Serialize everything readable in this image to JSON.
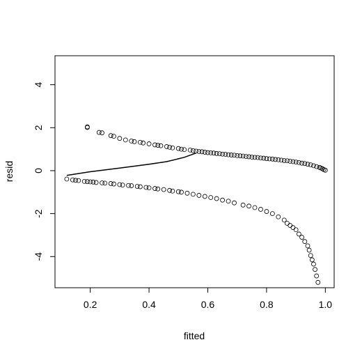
{
  "chart_data": {
    "type": "scatter",
    "title": "",
    "xlabel": "fitted",
    "ylabel": "resid",
    "xlim": [
      0.08,
      1.03
    ],
    "ylim": [
      -5.45,
      5.35
    ],
    "xticks": [
      0.2,
      0.4,
      0.6,
      0.8,
      1.0
    ],
    "xtick_labels": [
      "0.2",
      "0.4",
      "0.6",
      "0.8",
      "1.0"
    ],
    "yticks": [
      -4,
      -2,
      0,
      2,
      4
    ],
    "ytick_labels": [
      "-4",
      "-2",
      "0",
      "2",
      "4"
    ],
    "grid": false,
    "point_style": "open-circle",
    "series": [
      {
        "values": [
          [
            0.19,
            2.04
          ],
          [
            0.19,
            2.01
          ],
          [
            0.23,
            1.78
          ],
          [
            0.24,
            1.76
          ],
          [
            0.27,
            1.63
          ],
          [
            0.28,
            1.6
          ],
          [
            0.3,
            1.5
          ],
          [
            0.32,
            1.43
          ],
          [
            0.34,
            1.38
          ],
          [
            0.35,
            1.35
          ],
          [
            0.37,
            1.32
          ],
          [
            0.38,
            1.29
          ],
          [
            0.4,
            1.25
          ],
          [
            0.42,
            1.2
          ],
          [
            0.43,
            1.18
          ],
          [
            0.44,
            1.16
          ],
          [
            0.46,
            1.12
          ],
          [
            0.47,
            1.09
          ],
          [
            0.48,
            1.06
          ],
          [
            0.5,
            1.03
          ],
          [
            0.51,
            1.0
          ],
          [
            0.52,
            0.98
          ],
          [
            0.54,
            0.96
          ],
          [
            0.55,
            0.93
          ],
          [
            0.56,
            0.91
          ],
          [
            0.57,
            0.89
          ],
          [
            0.58,
            0.88
          ],
          [
            0.59,
            0.86
          ],
          [
            0.6,
            0.84
          ],
          [
            0.61,
            0.83
          ],
          [
            0.62,
            0.82
          ],
          [
            0.63,
            0.8
          ],
          [
            0.64,
            0.79
          ],
          [
            0.65,
            0.77
          ],
          [
            0.66,
            0.76
          ],
          [
            0.67,
            0.74
          ],
          [
            0.68,
            0.73
          ],
          [
            0.69,
            0.72
          ],
          [
            0.7,
            0.7
          ],
          [
            0.71,
            0.69
          ],
          [
            0.72,
            0.68
          ],
          [
            0.73,
            0.66
          ],
          [
            0.74,
            0.65
          ],
          [
            0.75,
            0.63
          ],
          [
            0.76,
            0.62
          ],
          [
            0.77,
            0.61
          ],
          [
            0.78,
            0.59
          ],
          [
            0.79,
            0.58
          ],
          [
            0.8,
            0.56
          ],
          [
            0.81,
            0.55
          ],
          [
            0.82,
            0.54
          ],
          [
            0.83,
            0.52
          ],
          [
            0.84,
            0.51
          ],
          [
            0.85,
            0.49
          ],
          [
            0.86,
            0.47
          ],
          [
            0.87,
            0.46
          ],
          [
            0.88,
            0.44
          ],
          [
            0.89,
            0.42
          ],
          [
            0.9,
            0.4
          ],
          [
            0.91,
            0.38
          ],
          [
            0.92,
            0.35
          ],
          [
            0.93,
            0.33
          ],
          [
            0.94,
            0.3
          ],
          [
            0.95,
            0.27
          ],
          [
            0.96,
            0.23
          ],
          [
            0.97,
            0.19
          ],
          [
            0.98,
            0.15
          ],
          [
            0.985,
            0.12
          ],
          [
            0.99,
            0.09
          ],
          [
            0.995,
            0.05
          ],
          [
            1.0,
            0.02
          ],
          [
            0.12,
            -0.39
          ],
          [
            0.14,
            -0.43
          ],
          [
            0.15,
            -0.45
          ],
          [
            0.16,
            -0.46
          ],
          [
            0.18,
            -0.5
          ],
          [
            0.19,
            -0.51
          ],
          [
            0.2,
            -0.52
          ],
          [
            0.21,
            -0.53
          ],
          [
            0.22,
            -0.55
          ],
          [
            0.24,
            -0.57
          ],
          [
            0.25,
            -0.58
          ],
          [
            0.27,
            -0.6
          ],
          [
            0.28,
            -0.62
          ],
          [
            0.3,
            -0.65
          ],
          [
            0.31,
            -0.67
          ],
          [
            0.33,
            -0.69
          ],
          [
            0.34,
            -0.7
          ],
          [
            0.36,
            -0.73
          ],
          [
            0.37,
            -0.75
          ],
          [
            0.39,
            -0.78
          ],
          [
            0.4,
            -0.8
          ],
          [
            0.42,
            -0.83
          ],
          [
            0.43,
            -0.85
          ],
          [
            0.45,
            -0.88
          ],
          [
            0.47,
            -0.92
          ],
          [
            0.48,
            -0.95
          ],
          [
            0.5,
            -0.98
          ],
          [
            0.51,
            -1.0
          ],
          [
            0.53,
            -1.05
          ],
          [
            0.55,
            -1.1
          ],
          [
            0.57,
            -1.15
          ],
          [
            0.59,
            -1.2
          ],
          [
            0.61,
            -1.25
          ],
          [
            0.63,
            -1.3
          ],
          [
            0.65,
            -1.37
          ],
          [
            0.67,
            -1.42
          ],
          [
            0.69,
            -1.5
          ],
          [
            0.72,
            -1.6
          ],
          [
            0.74,
            -1.65
          ],
          [
            0.76,
            -1.72
          ],
          [
            0.78,
            -1.8
          ],
          [
            0.8,
            -1.9
          ],
          [
            0.82,
            -2.0
          ],
          [
            0.84,
            -2.15
          ],
          [
            0.86,
            -2.3
          ],
          [
            0.87,
            -2.45
          ],
          [
            0.88,
            -2.55
          ],
          [
            0.89,
            -2.65
          ],
          [
            0.9,
            -2.75
          ],
          [
            0.91,
            -2.95
          ],
          [
            0.92,
            -3.1
          ],
          [
            0.93,
            -3.3
          ],
          [
            0.94,
            -3.5
          ],
          [
            0.945,
            -3.7
          ],
          [
            0.95,
            -3.95
          ],
          [
            0.955,
            -4.15
          ],
          [
            0.96,
            -4.35
          ],
          [
            0.965,
            -4.6
          ],
          [
            0.97,
            -4.9
          ],
          [
            0.975,
            -5.2
          ]
        ]
      },
      {
        "type": "line",
        "values": [
          [
            0.12,
            -0.22
          ],
          [
            0.2,
            -0.05
          ],
          [
            0.3,
            0.12
          ],
          [
            0.4,
            0.3
          ],
          [
            0.46,
            0.42
          ],
          [
            0.52,
            0.62
          ],
          [
            0.56,
            0.82
          ]
        ]
      }
    ]
  }
}
